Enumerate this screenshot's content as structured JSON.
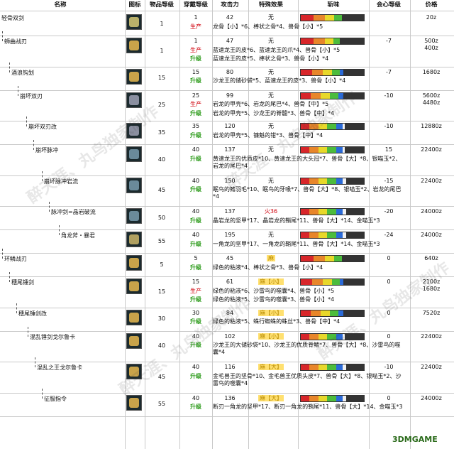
{
  "header": {
    "name": "名称",
    "icon": "图标",
    "rarity": "物品等级",
    "hr": "穿戴等级",
    "attack": "攻击力",
    "special": "特殊效果",
    "sharpness": "斩味",
    "affinity": "会心等级",
    "price": "价格"
  },
  "labels": {
    "produce": "生产",
    "upgrade": "升级"
  },
  "rows": [
    {
      "name": "轻骨双剑",
      "rarity": "1",
      "icon_color": "#b8b06a",
      "affinity": "",
      "price": "20z",
      "lines": [
        {
          "hr": "1",
          "attack": "42",
          "special": "无",
          "tag": "",
          "sharp": [
            20,
            18,
            15,
            12,
            0,
            0,
            0
          ]
        },
        {
          "hr": "",
          "attack": "",
          "special": "",
          "tag": "produce",
          "mat": "龙骨【小】*6、棒状之骨*4、兽骨【小】*5"
        }
      ]
    },
    {
      "name": "蛳曲战刃",
      "rarity": "1",
      "icon_color": "#c8a34a",
      "affinity": "-7",
      "price": "500z\n400z",
      "lines": [
        {
          "hr": "1",
          "attack": "47",
          "special": "无",
          "tag": "",
          "sharp": [
            20,
            18,
            14,
            10,
            0,
            0,
            0
          ]
        },
        {
          "hr": "",
          "attack": "",
          "special": "",
          "tag": "produce",
          "mat": "蓝速龙王的皮*6、蓝速龙王的爪*4、兽骨【小】*5"
        },
        {
          "hr": "",
          "attack": "",
          "special": "",
          "tag": "upgrade",
          "mat": "蓝速龙王的皮*5、棒状之骨*3、兽骨【小】*4"
        }
      ]
    },
    {
      "name": "酒浪钩划",
      "rarity": "15",
      "icon_color": "#c8a34a",
      "affinity": "-7",
      "price": "1680z",
      "lines": [
        {
          "hr": "15",
          "attack": "80",
          "special": "无",
          "tag": "",
          "sharp": [
            18,
            17,
            15,
            12,
            6,
            0,
            0
          ]
        },
        {
          "hr": "",
          "attack": "",
          "special": "",
          "tag": "upgrade",
          "mat": "沙龙王的储砂袋*5、蓝速龙王的皮*3、兽骨【小】*4"
        }
      ]
    },
    {
      "name": "崩坏双刃",
      "rarity": "25",
      "icon_color": "#8a8fa0",
      "affinity": "-10",
      "price": "5600z\n4480z",
      "lines": [
        {
          "hr": "25",
          "attack": "99",
          "special": "无",
          "tag": "",
          "sharp": [
            16,
            16,
            14,
            14,
            8,
            0,
            0
          ]
        },
        {
          "hr": "",
          "attack": "",
          "special": "",
          "tag": "produce",
          "mat": "岩龙的甲壳*6、岩龙的尾巴*4、兽骨【中】*5"
        },
        {
          "hr": "",
          "attack": "",
          "special": "",
          "tag": "upgrade",
          "mat": "岩龙的甲壳*5、沙龙王的脊髓*3、兽骨【中】*4"
        }
      ]
    },
    {
      "name": "崩坏双刃改",
      "rarity": "35",
      "icon_color": "#8a8fa0",
      "affinity": "-10",
      "price": "12880z",
      "lines": [
        {
          "hr": "35",
          "attack": "120",
          "special": "无",
          "tag": "",
          "sharp": [
            14,
            14,
            14,
            14,
            10,
            4,
            0
          ]
        },
        {
          "hr": "",
          "attack": "",
          "special": "",
          "tag": "upgrade",
          "mat": "岩龙的甲壳*5、镰魁的钳*3、兽骨【中】*4"
        }
      ]
    },
    {
      "name": "崩坏脉冲",
      "rarity": "40",
      "icon_color": "#6a8a9a",
      "affinity": "15",
      "price": "22400z",
      "lines": [
        {
          "hr": "40",
          "attack": "137",
          "special": "无",
          "tag": "",
          "sharp": [
            14,
            14,
            14,
            14,
            10,
            4,
            0
          ]
        },
        {
          "hr": "",
          "attack": "",
          "special": "",
          "tag": "upgrade",
          "mat": "黄速龙王的优质皮*10、黄速龙王的大头冠*7、兽骨【大】*8、银喵玉*2、岩龙的尾巴*4"
        }
      ]
    },
    {
      "name": "崩坏脉冲岩流",
      "rarity": "45",
      "icon_color": "#6a8a9a",
      "affinity": "-15",
      "price": "22400z",
      "lines": [
        {
          "hr": "40",
          "attack": "150",
          "special": "无",
          "tag": "",
          "sharp": [
            14,
            14,
            14,
            14,
            10,
            6,
            0
          ]
        },
        {
          "hr": "",
          "attack": "",
          "special": "",
          "tag": "upgrade",
          "mat": "眠鸟的鳍羽毛*10、眠鸟的牙喙*7、兽骨【大】*8、银喵玉*2、岩龙的尾巴*4"
        }
      ]
    },
    {
      "name": "脉冲剑=晶岩破流",
      "rarity": "50",
      "icon_color": "#6a8a9a",
      "affinity": "-20",
      "price": "24000z",
      "lines": [
        {
          "hr": "40",
          "attack": "137",
          "special": "火36",
          "special_kind": "fire",
          "tag": "",
          "sharp": [
            14,
            14,
            14,
            14,
            10,
            6,
            0
          ]
        },
        {
          "hr": "",
          "attack": "",
          "special": "",
          "tag": "upgrade",
          "mat": "晶岩龙的坚甲*17、晶岩龙的鞘尾*11、兽骨【大】*14、金喵玉*3"
        }
      ]
    },
    {
      "name": "角龙斧・暴君",
      "rarity": "55",
      "icon_color": "#b0a060",
      "affinity": "-24",
      "price": "24000z",
      "lines": [
        {
          "hr": "40",
          "attack": "195",
          "special": "无",
          "tag": "",
          "sharp": [
            14,
            14,
            14,
            14,
            10,
            6,
            0
          ]
        },
        {
          "hr": "",
          "attack": "",
          "special": "",
          "tag": "upgrade",
          "mat": "一角龙的坚甲*17、一角龙的鞘尾*11、兽骨【大】*14、金喵玉*3"
        }
      ]
    },
    {
      "name": "环鳞战刃",
      "rarity": "5",
      "icon_color": "#c8a34a",
      "affinity": "0",
      "price": "640z",
      "lines": [
        {
          "hr": "5",
          "attack": "45",
          "special": "麻",
          "special_kind": "para",
          "tag": "",
          "sharp": [
            20,
            18,
            15,
            12,
            0,
            0,
            0
          ]
        },
        {
          "hr": "",
          "attack": "",
          "special": "",
          "tag": "upgrade",
          "mat": "绿色的粘液*4、棒状之骨*3、兽骨【小】*4"
        }
      ]
    },
    {
      "name": "穗尾锤剑",
      "rarity": "15",
      "icon_color": "#c8a34a",
      "affinity": "0",
      "price": "2100z\n1680z",
      "lines": [
        {
          "hr": "15",
          "attack": "61",
          "special": "麻【小】",
          "special_kind": "para",
          "tag": "",
          "sharp": [
            18,
            17,
            15,
            12,
            6,
            0,
            0
          ]
        },
        {
          "hr": "",
          "attack": "",
          "special": "",
          "tag": "produce",
          "mat": "绿色的粘液*6、沙雷鸟的噬囊*4、兽骨【小】*5"
        },
        {
          "hr": "",
          "attack": "",
          "special": "",
          "tag": "upgrade",
          "mat": "绿色的粘液*5、沙雷鸟的噬囊*3、兽骨【小】*4"
        }
      ]
    },
    {
      "name": "穗尾锤剑改",
      "rarity": "30",
      "icon_color": "#c8a34a",
      "affinity": "0",
      "price": "7520z",
      "lines": [
        {
          "hr": "30",
          "attack": "84",
          "special": "麻【小】",
          "special_kind": "para",
          "tag": "",
          "sharp": [
            16,
            16,
            14,
            14,
            8,
            0,
            0
          ]
        },
        {
          "hr": "",
          "attack": "",
          "special": "",
          "tag": "upgrade",
          "mat": "绿色的粘液*5、蛛行蜘蛛的蛛丝*3、兽骨【中】*4"
        }
      ]
    },
    {
      "name": "混乱锤剑戈尔鲁卡",
      "rarity": "40",
      "icon_color": "#c8a34a",
      "affinity": "0",
      "price": "22400z",
      "lines": [
        {
          "hr": "40",
          "attack": "102",
          "special": "麻【小】",
          "special_kind": "para",
          "tag": "",
          "sharp": [
            14,
            14,
            14,
            14,
            10,
            4,
            0
          ]
        },
        {
          "hr": "",
          "attack": "",
          "special": "",
          "tag": "upgrade",
          "mat": "沙龙王的大储砂袋*10、沙龙王的优质脊鳍*7、兽骨【大】*8、沙雷鸟的噬囊*4"
        }
      ]
    },
    {
      "name": "混乱之王戈尔鲁卡",
      "rarity": "45",
      "icon_color": "#c8a34a",
      "affinity": "-10",
      "price": "22400z",
      "lines": [
        {
          "hr": "40",
          "attack": "116",
          "special": "麻【大】",
          "special_kind": "para",
          "tag": "",
          "sharp": [
            14,
            14,
            14,
            14,
            10,
            6,
            0
          ]
        },
        {
          "hr": "",
          "attack": "",
          "special": "",
          "tag": "upgrade",
          "mat": "金毛兽王的坚骨*10、金毛兽王优质头皮*7、兽骨【大】*8、银喵玉*2、沙雷鸟的噬囊*4"
        }
      ]
    },
    {
      "name": "征服指令",
      "rarity": "55",
      "icon_color": "#c8a34a",
      "affinity": "0",
      "price": "24000z",
      "lines": [
        {
          "hr": "40",
          "attack": "136",
          "special": "麻【大】",
          "special_kind": "para",
          "tag": "",
          "sharp": [
            14,
            14,
            14,
            14,
            10,
            6,
            0
          ]
        },
        {
          "hr": "",
          "attack": "",
          "special": "",
          "tag": "upgrade",
          "mat": "断刃一角龙的坚甲*17、断刃一角龙的鞘尾*11、兽骨【大】*14、金喵玉*3"
        }
      ]
    }
  ],
  "colors": {
    "sharp": [
      "#d8262a",
      "#e8862a",
      "#e8d82a",
      "#4cbc3c",
      "#2a6ad8",
      "#f0f0f0",
      "#b050d0"
    ]
  },
  "watermark": "醉天涯、丸鸟独家制作",
  "corner_logo": "3DMGAME"
}
